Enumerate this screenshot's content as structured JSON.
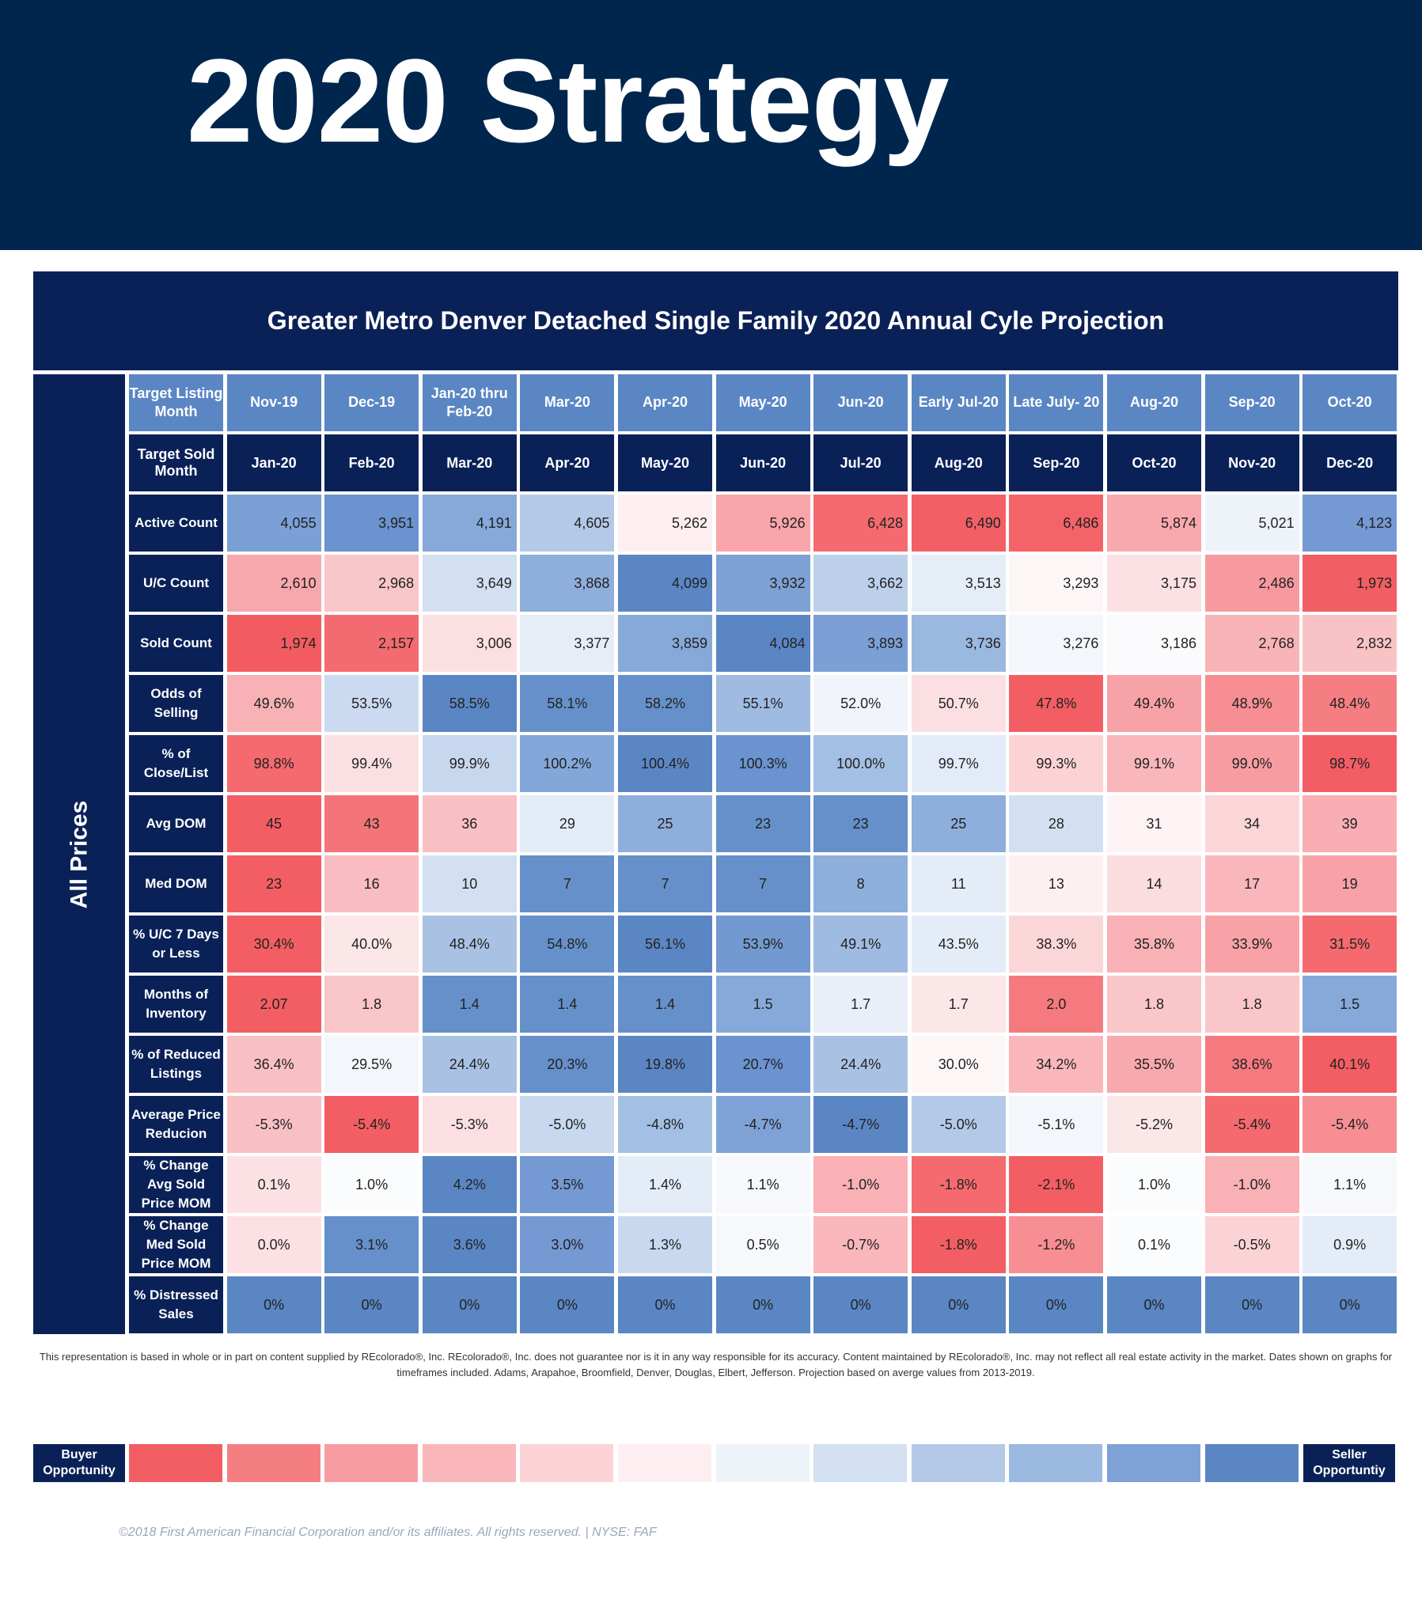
{
  "banner": {
    "title": "2020 Strategy"
  },
  "panel": {
    "title": "Greater Metro Denver Detached Single Family 2020 Annual Cyle Projection",
    "side_label": "All Prices"
  },
  "table": {
    "columns": [
      {
        "listing": "Nov-19",
        "sold": "Jan-20"
      },
      {
        "listing": "Dec-19",
        "sold": "Feb-20"
      },
      {
        "listing": "Jan-20 thru Feb-20",
        "sold": "Mar-20"
      },
      {
        "listing": "Mar-20",
        "sold": "Apr-20"
      },
      {
        "listing": "Apr-20",
        "sold": "May-20"
      },
      {
        "listing": "May-20",
        "sold": "Jun-20"
      },
      {
        "listing": "Jun-20",
        "sold": "Jul-20"
      },
      {
        "listing": "Early Jul-20",
        "sold": "Aug-20"
      },
      {
        "listing": "Late July- 20",
        "sold": "Sep-20"
      },
      {
        "listing": "Aug-20",
        "sold": "Oct-20"
      },
      {
        "listing": "Sep-20",
        "sold": "Nov-20"
      },
      {
        "listing": "Oct-20",
        "sold": "Dec-20"
      }
    ],
    "listing_header": "Target Listing Month",
    "sold_header": "Target Sold Month",
    "rows": [
      {
        "label": "Active Count",
        "align": "right",
        "values": [
          "4,055",
          "3,951",
          "4,191",
          "4,605",
          "5,262",
          "5,926",
          "6,428",
          "6,490",
          "6,486",
          "5,874",
          "5,021",
          "4,123"
        ],
        "colors": [
          "#7aa0d6",
          "#6a93cf",
          "#86a9da",
          "#b4c9e8",
          "#fdeef0",
          "#f9a5aa",
          "#f46a6f",
          "#f26065",
          "#f36368",
          "#f8a9ad",
          "#eef3fa",
          "#7599d2"
        ]
      },
      {
        "label": "U/C Count",
        "align": "right",
        "values": [
          "2,610",
          "2,968",
          "3,649",
          "3,868",
          "4,099",
          "3,932",
          "3,662",
          "3,513",
          "3,293",
          "3,175",
          "2,486",
          "1,973"
        ],
        "colors": [
          "#f7a8ac",
          "#f9c6c9",
          "#d3e0f2",
          "#8eaedc",
          "#5b86c4",
          "#7da1d5",
          "#bcd0ea",
          "#e5edf7",
          "#fdf6f7",
          "#fbe1e3",
          "#f69a9f",
          "#f15e63"
        ]
      },
      {
        "label": "Sold Count",
        "align": "right",
        "values": [
          "1,974",
          "2,157",
          "3,006",
          "3,377",
          "3,859",
          "4,084",
          "3,893",
          "3,736",
          "3,276",
          "3,186",
          "2,768",
          "2,832"
        ],
        "colors": [
          "#f25c61",
          "#f36b70",
          "#fbe0e2",
          "#e6edf7",
          "#86a9da",
          "#5b86c4",
          "#7c9fd5",
          "#9ab8e0",
          "#f3f6fb",
          "#fbfbfd",
          "#f8b3b7",
          "#f9c3c6"
        ]
      },
      {
        "label": "Odds of Selling",
        "align": "center",
        "values": [
          "49.6%",
          "53.5%",
          "58.5%",
          "58.1%",
          "58.2%",
          "55.1%",
          "52.0%",
          "50.7%",
          "47.8%",
          "49.4%",
          "48.9%",
          "48.4%"
        ],
        "colors": [
          "#f8b1b5",
          "#cbdaf0",
          "#5b86c4",
          "#6690ca",
          "#6690ca",
          "#9fbbe2",
          "#f1f5fb",
          "#fbdfe2",
          "#f25e63",
          "#f7a2a7",
          "#f68e93",
          "#f57e83"
        ]
      },
      {
        "label": "% of Close/List",
        "align": "center",
        "values": [
          "98.8%",
          "99.4%",
          "99.9%",
          "100.2%",
          "100.4%",
          "100.3%",
          "100.0%",
          "99.7%",
          "99.3%",
          "99.1%",
          "99.0%",
          "98.7%"
        ],
        "colors": [
          "#f46a6f",
          "#fbe0e3",
          "#c7d7ee",
          "#84a7d9",
          "#5b86c4",
          "#6a93cf",
          "#a3bfe3",
          "#e2ebf7",
          "#fbd3d6",
          "#f9b7bb",
          "#f79da2",
          "#f25e63"
        ]
      },
      {
        "label": "Avg DOM",
        "align": "center",
        "values": [
          "45",
          "43",
          "36",
          "29",
          "25",
          "23",
          "23",
          "25",
          "28",
          "31",
          "34",
          "39"
        ],
        "colors": [
          "#f25e63",
          "#f47579",
          "#f9c0c4",
          "#e4ecf7",
          "#8eaedc",
          "#6690ca",
          "#6690ca",
          "#8eaedc",
          "#d3e0f2",
          "#fdf3f4",
          "#fbd6d9",
          "#f8aeb2"
        ]
      },
      {
        "label": "Med DOM",
        "align": "center",
        "values": [
          "23",
          "16",
          "10",
          "7",
          "7",
          "7",
          "8",
          "11",
          "13",
          "14",
          "17",
          "19"
        ],
        "colors": [
          "#f25e63",
          "#f9bcc0",
          "#d3e0f2",
          "#6690ca",
          "#6690ca",
          "#6690ca",
          "#8eaedc",
          "#e4ecf7",
          "#fdf0f1",
          "#fbdcdf",
          "#f9b7bb",
          "#f8a2a7"
        ]
      },
      {
        "label": "% U/C 7 Days or Less",
        "align": "center",
        "values": [
          "30.4%",
          "40.0%",
          "48.4%",
          "54.8%",
          "56.1%",
          "53.9%",
          "49.1%",
          "43.5%",
          "38.3%",
          "35.8%",
          "33.9%",
          "31.5%"
        ],
        "colors": [
          "#f25e63",
          "#fbe6e8",
          "#a9c2e4",
          "#6690ca",
          "#5b86c4",
          "#739ad0",
          "#a0bbe2",
          "#e4ecf7",
          "#fbd6d9",
          "#f8b1b5",
          "#f8a2a7",
          "#f46a6f"
        ]
      },
      {
        "label": "Months of Inventory",
        "align": "center",
        "values": [
          "2.07",
          "1.8",
          "1.4",
          "1.4",
          "1.4",
          "1.5",
          "1.7",
          "1.7",
          "2.0",
          "1.8",
          "1.8",
          "1.5"
        ],
        "colors": [
          "#f25e63",
          "#f9c6c9",
          "#6690ca",
          "#6690ca",
          "#6690ca",
          "#86a9da",
          "#e8eff8",
          "#fbe6e8",
          "#f57a7f",
          "#f9c6c9",
          "#f9c6c9",
          "#86a9da"
        ]
      },
      {
        "label": "% of Reduced Listings",
        "align": "center",
        "values": [
          "36.4%",
          "29.5%",
          "24.4%",
          "20.3%",
          "19.8%",
          "20.7%",
          "24.4%",
          "30.0%",
          "34.2%",
          "35.5%",
          "38.6%",
          "40.1%"
        ],
        "colors": [
          "#f9c0c4",
          "#f3f6fb",
          "#a9c2e4",
          "#6690ca",
          "#5b86c4",
          "#6a93cf",
          "#a9c2e4",
          "#fdf6f7",
          "#f9b7bb",
          "#f8a9ad",
          "#f57a7f",
          "#f25e63"
        ]
      },
      {
        "label": "Average Price Reducion",
        "align": "center",
        "values": [
          "-5.3%",
          "-5.4%",
          "-5.3%",
          "-5.0%",
          "-4.8%",
          "-4.7%",
          "-4.7%",
          "-5.0%",
          "-5.1%",
          "-5.2%",
          "-5.4%",
          "-5.4%"
        ],
        "colors": [
          "#f9c0c4",
          "#f25e63",
          "#fbdfe2",
          "#c8d8ef",
          "#a3bfe3",
          "#7ea2d6",
          "#5b86c4",
          "#b4c9e8",
          "#f3f6fb",
          "#fbe6e8",
          "#f46a6f",
          "#f68e93"
        ]
      },
      {
        "label": "% Change Avg Sold Price MOM",
        "align": "center",
        "values": [
          "0.1%",
          "1.0%",
          "4.2%",
          "3.5%",
          "1.4%",
          "1.1%",
          "-1.0%",
          "-1.8%",
          "-2.1%",
          "1.0%",
          "-1.0%",
          "1.1%"
        ],
        "colors": [
          "#fbe1e3",
          "#fbfcfe",
          "#5b86c4",
          "#7599d2",
          "#e4ecf7",
          "#f6f8fc",
          "#f9b1b5",
          "#f46a6f",
          "#f25e63",
          "#fbfcfe",
          "#f9b1b5",
          "#f6f8fc"
        ]
      },
      {
        "label": "% Change Med Sold Price MOM",
        "align": "center",
        "values": [
          "0.0%",
          "3.1%",
          "3.6%",
          "3.0%",
          "1.3%",
          "0.5%",
          "-0.7%",
          "-1.8%",
          "-1.2%",
          "0.1%",
          "-0.5%",
          "0.9%"
        ],
        "colors": [
          "#fbe1e3",
          "#6690ca",
          "#5b86c4",
          "#7599d2",
          "#c8d8ef",
          "#f6f8fc",
          "#f9b7bb",
          "#f25e63",
          "#f68e93",
          "#fbfcfe",
          "#fbd3d6",
          "#e4ecf7"
        ]
      },
      {
        "label": "% Distressed Sales",
        "align": "center",
        "values": [
          "0%",
          "0%",
          "0%",
          "0%",
          "0%",
          "0%",
          "0%",
          "0%",
          "0%",
          "0%",
          "0%",
          "0%"
        ],
        "colors": [
          "#5b86c4",
          "#5b86c4",
          "#5b86c4",
          "#5b86c4",
          "#5b86c4",
          "#5b86c4",
          "#5b86c4",
          "#5b86c4",
          "#5b86c4",
          "#5b86c4",
          "#5b86c4",
          "#5b86c4"
        ]
      }
    ]
  },
  "disclaimer": "This representation is based in whole or in part on content supplied by REcolorado®, Inc. REcolorado®, Inc. does not guarantee nor is it in any way responsible for its accuracy. Content maintained by REcolorado®, Inc. may not reflect all real estate activity in the market. Dates shown on graphs for timeframes included.  Adams, Arapahoe, Broomfield, Denver, Douglas, Elbert, Jefferson. Projection based on averge values from 2013-2019.",
  "legend": {
    "left_label": "Buyer Opportunity",
    "right_label": "Seller Opportuntiy",
    "swatches": [
      "#f25e63",
      "#f57e83",
      "#f79da2",
      "#f9b7bb",
      "#fbd3d6",
      "#fdeff1",
      "#eef3fa",
      "#d3e0f2",
      "#b4c9e8",
      "#9ab8e0",
      "#7ea2d6",
      "#5b86c4"
    ]
  },
  "copyright": "©2018 First American Financial Corporation and/or its affiliates. All rights reserved. | NYSE: FAF"
}
